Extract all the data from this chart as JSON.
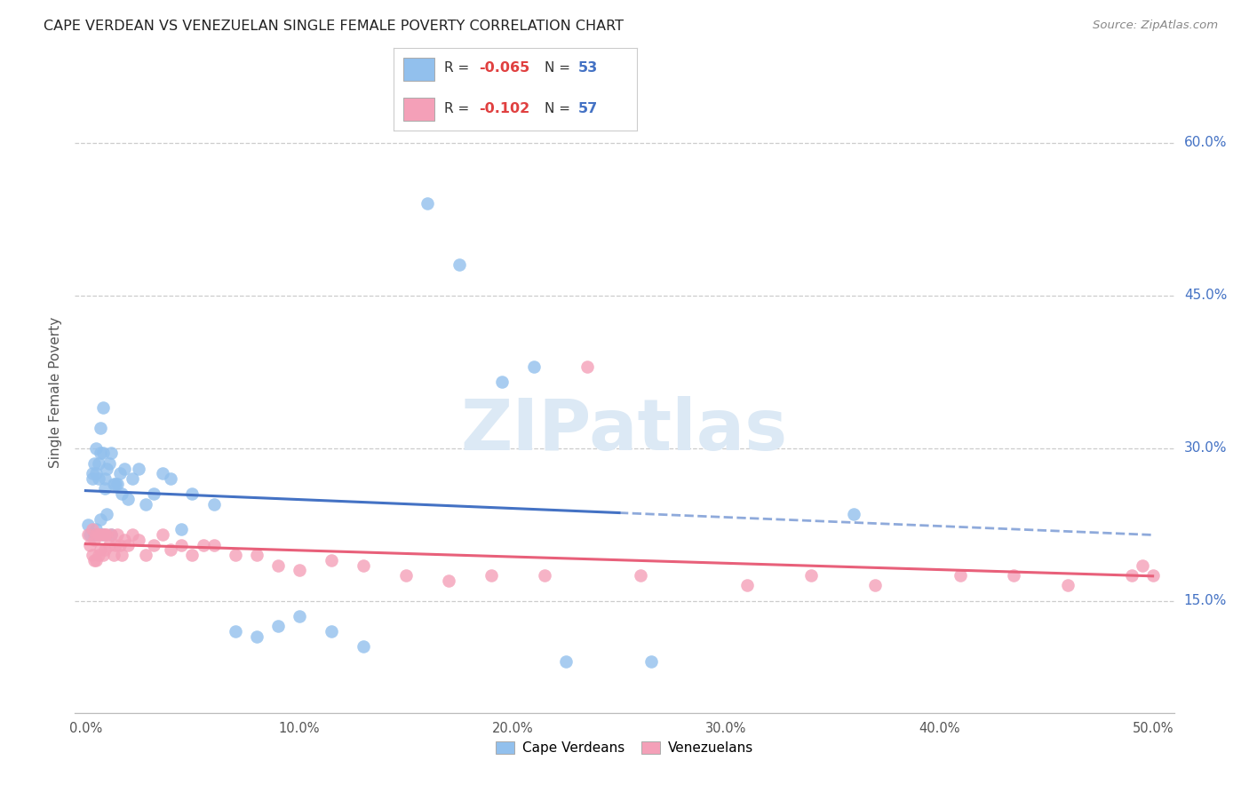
{
  "title": "CAPE VERDEAN VS VENEZUELAN SINGLE FEMALE POVERTY CORRELATION CHART",
  "source": "Source: ZipAtlas.com",
  "ylabel": "Single Female Poverty",
  "ytick_labels": [
    "15.0%",
    "30.0%",
    "45.0%",
    "60.0%"
  ],
  "ytick_values": [
    0.15,
    0.3,
    0.45,
    0.6
  ],
  "xtick_labels": [
    "0.0%",
    "10.0%",
    "20.0%",
    "30.0%",
    "40.0%",
    "50.0%"
  ],
  "xtick_values": [
    0.0,
    0.1,
    0.2,
    0.3,
    0.4,
    0.5
  ],
  "xlim": [
    -0.005,
    0.51
  ],
  "ylim": [
    0.04,
    0.67
  ],
  "legend_r_blue": "-0.065",
  "legend_n_blue": "53",
  "legend_r_pink": "-0.102",
  "legend_n_pink": "57",
  "blue_color": "#92C0ED",
  "pink_color": "#F4A0B8",
  "trend_blue_color": "#4472C4",
  "trend_pink_color": "#E8607A",
  "watermark_text": "ZIPatlas",
  "watermark_color": "#DCE9F5",
  "cv_x": [
    0.001,
    0.002,
    0.003,
    0.003,
    0.004,
    0.004,
    0.005,
    0.005,
    0.005,
    0.006,
    0.006,
    0.007,
    0.007,
    0.007,
    0.008,
    0.008,
    0.008,
    0.009,
    0.009,
    0.01,
    0.01,
    0.011,
    0.012,
    0.012,
    0.013,
    0.014,
    0.015,
    0.016,
    0.017,
    0.018,
    0.02,
    0.022,
    0.025,
    0.028,
    0.032,
    0.036,
    0.04,
    0.045,
    0.05,
    0.06,
    0.07,
    0.08,
    0.09,
    0.1,
    0.115,
    0.13,
    0.16,
    0.175,
    0.195,
    0.21,
    0.225,
    0.265,
    0.36
  ],
  "cv_y": [
    0.225,
    0.215,
    0.275,
    0.27,
    0.285,
    0.215,
    0.3,
    0.275,
    0.22,
    0.27,
    0.285,
    0.295,
    0.32,
    0.23,
    0.34,
    0.295,
    0.215,
    0.26,
    0.27,
    0.28,
    0.235,
    0.285,
    0.295,
    0.215,
    0.265,
    0.265,
    0.265,
    0.275,
    0.255,
    0.28,
    0.25,
    0.27,
    0.28,
    0.245,
    0.255,
    0.275,
    0.27,
    0.22,
    0.255,
    0.245,
    0.12,
    0.115,
    0.125,
    0.135,
    0.12,
    0.105,
    0.54,
    0.48,
    0.365,
    0.38,
    0.09,
    0.09,
    0.235
  ],
  "ven_x": [
    0.001,
    0.002,
    0.003,
    0.003,
    0.004,
    0.004,
    0.005,
    0.005,
    0.006,
    0.006,
    0.007,
    0.007,
    0.008,
    0.008,
    0.009,
    0.009,
    0.01,
    0.011,
    0.012,
    0.013,
    0.014,
    0.015,
    0.016,
    0.017,
    0.018,
    0.02,
    0.022,
    0.025,
    0.028,
    0.032,
    0.036,
    0.04,
    0.045,
    0.05,
    0.055,
    0.06,
    0.07,
    0.08,
    0.09,
    0.1,
    0.115,
    0.13,
    0.15,
    0.17,
    0.19,
    0.215,
    0.235,
    0.26,
    0.31,
    0.34,
    0.37,
    0.41,
    0.435,
    0.46,
    0.49,
    0.495,
    0.5
  ],
  "ven_y": [
    0.215,
    0.205,
    0.22,
    0.195,
    0.21,
    0.19,
    0.215,
    0.19,
    0.215,
    0.195,
    0.215,
    0.2,
    0.215,
    0.195,
    0.215,
    0.2,
    0.215,
    0.205,
    0.215,
    0.195,
    0.205,
    0.215,
    0.205,
    0.195,
    0.21,
    0.205,
    0.215,
    0.21,
    0.195,
    0.205,
    0.215,
    0.2,
    0.205,
    0.195,
    0.205,
    0.205,
    0.195,
    0.195,
    0.185,
    0.18,
    0.19,
    0.185,
    0.175,
    0.17,
    0.175,
    0.175,
    0.38,
    0.175,
    0.165,
    0.175,
    0.165,
    0.175,
    0.175,
    0.165,
    0.175,
    0.185,
    0.175
  ],
  "cv_trend_solid_end": 0.25,
  "ven_trend_solid_end": 0.5
}
